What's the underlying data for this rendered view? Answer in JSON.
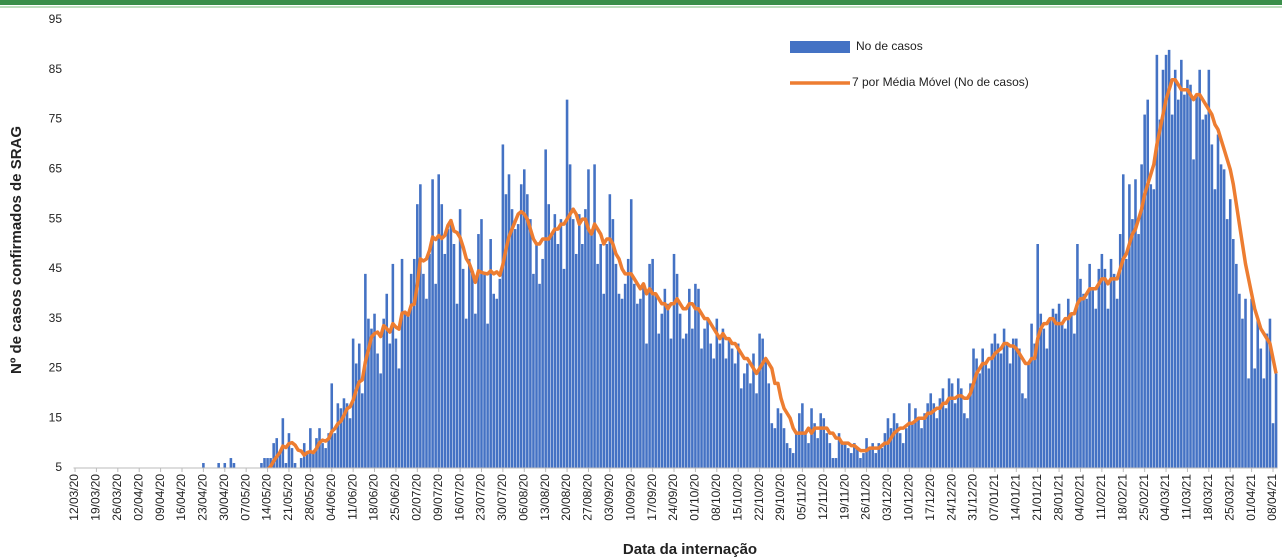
{
  "chart_data": {
    "type": "bar",
    "x_label": "Data da internação",
    "y_label": "Nº de casos confirmados de SRAG",
    "legend": "top-right",
    "grid": false,
    "ylim": [
      5,
      95
    ],
    "yticks": [
      5,
      15,
      25,
      35,
      45,
      55,
      65,
      75,
      85,
      95
    ],
    "categories": [
      "12/03/20",
      null,
      null,
      null,
      null,
      null,
      null,
      "19/03/20",
      null,
      null,
      null,
      null,
      null,
      null,
      "26/03/20",
      null,
      null,
      null,
      null,
      null,
      null,
      "02/04/20",
      null,
      null,
      null,
      null,
      null,
      null,
      "09/04/20",
      null,
      null,
      null,
      null,
      null,
      null,
      "16/04/20",
      null,
      null,
      null,
      null,
      null,
      null,
      "23/04/20",
      null,
      null,
      null,
      null,
      null,
      null,
      "30/04/20",
      null,
      null,
      null,
      null,
      null,
      null,
      "07/05/20",
      null,
      null,
      null,
      null,
      null,
      null,
      "14/05/20",
      null,
      null,
      null,
      null,
      null,
      null,
      "21/05/20",
      null,
      null,
      null,
      null,
      null,
      null,
      "28/05/20",
      null,
      null,
      null,
      null,
      null,
      null,
      "04/06/20",
      null,
      null,
      null,
      null,
      null,
      null,
      "11/06/20",
      null,
      null,
      null,
      null,
      null,
      null,
      "18/06/20",
      null,
      null,
      null,
      null,
      null,
      null,
      "25/06/20",
      null,
      null,
      null,
      null,
      null,
      null,
      "02/07/20",
      null,
      null,
      null,
      null,
      null,
      null,
      "09/07/20",
      null,
      null,
      null,
      null,
      null,
      null,
      "16/07/20",
      null,
      null,
      null,
      null,
      null,
      null,
      "23/07/20",
      null,
      null,
      null,
      null,
      null,
      null,
      "30/07/20",
      null,
      null,
      null,
      null,
      null,
      null,
      "06/08/20",
      null,
      null,
      null,
      null,
      null,
      null,
      "13/08/20",
      null,
      null,
      null,
      null,
      null,
      null,
      "20/08/20",
      null,
      null,
      null,
      null,
      null,
      null,
      "27/08/20",
      null,
      null,
      null,
      null,
      null,
      null,
      "03/09/20",
      null,
      null,
      null,
      null,
      null,
      null,
      "10/09/20",
      null,
      null,
      null,
      null,
      null,
      null,
      "17/09/20",
      null,
      null,
      null,
      null,
      null,
      null,
      "24/09/20",
      null,
      null,
      null,
      null,
      null,
      null,
      "01/10/20",
      null,
      null,
      null,
      null,
      null,
      null,
      "08/10/20",
      null,
      null,
      null,
      null,
      null,
      null,
      "15/10/20",
      null,
      null,
      null,
      null,
      null,
      null,
      "22/10/20",
      null,
      null,
      null,
      null,
      null,
      null,
      "29/10/20",
      null,
      null,
      null,
      null,
      null,
      null,
      "05/11/20",
      null,
      null,
      null,
      null,
      null,
      null,
      "12/11/20",
      null,
      null,
      null,
      null,
      null,
      null,
      "19/11/20",
      null,
      null,
      null,
      null,
      null,
      null,
      "26/11/20",
      null,
      null,
      null,
      null,
      null,
      null,
      "03/12/20",
      null,
      null,
      null,
      null,
      null,
      null,
      "10/12/20",
      null,
      null,
      null,
      null,
      null,
      null,
      "17/12/20",
      null,
      null,
      null,
      null,
      null,
      null,
      "24/12/20",
      null,
      null,
      null,
      null,
      null,
      null,
      "31/12/20",
      null,
      null,
      null,
      null,
      null,
      null,
      "07/01/21",
      null,
      null,
      null,
      null,
      null,
      null,
      "14/01/21",
      null,
      null,
      null,
      null,
      null,
      null,
      "21/01/21",
      null,
      null,
      null,
      null,
      null,
      null,
      "28/01/21",
      null,
      null,
      null,
      null,
      null,
      null,
      "04/02/21",
      null,
      null,
      null,
      null,
      null,
      null,
      "11/02/21",
      null,
      null,
      null,
      null,
      null,
      null,
      "18/02/21",
      null,
      null,
      null,
      null,
      null,
      null,
      "25/02/21",
      null,
      null,
      null,
      null,
      null,
      null,
      "04/03/21",
      null,
      null,
      null,
      null,
      null,
      null,
      "11/03/21",
      null,
      null,
      null,
      null,
      null,
      null,
      "18/03/21",
      null,
      null,
      null,
      null,
      null,
      null,
      "25/03/21",
      null,
      null,
      null,
      null,
      null,
      null,
      "01/04/21",
      null,
      null,
      null,
      null,
      null,
      null,
      "08/04/21",
      null
    ],
    "series": [
      {
        "name": "No de casos",
        "type": "bar",
        "color": "#4472c4",
        "values": [
          0,
          0,
          0,
          0,
          0,
          0,
          0,
          0,
          0,
          0,
          0,
          0,
          0,
          0,
          0,
          0,
          0,
          0,
          0,
          0,
          0,
          0,
          0,
          0,
          0,
          0,
          0,
          0,
          0,
          0,
          0,
          0,
          0,
          0,
          0,
          0,
          1,
          0,
          0,
          1,
          0,
          0,
          6,
          0,
          1,
          0,
          0,
          6,
          2,
          6,
          2,
          7,
          6,
          0,
          3,
          1,
          4,
          3,
          2,
          5,
          3,
          6,
          7,
          7,
          7,
          10,
          11,
          8,
          15,
          6,
          12,
          9,
          6,
          5,
          7,
          10,
          8,
          13,
          8,
          11,
          13,
          10,
          9,
          12,
          22,
          12,
          18,
          17,
          19,
          18,
          15,
          31,
          26,
          30,
          20,
          44,
          35,
          33,
          36,
          28,
          24,
          35,
          40,
          30,
          46,
          31,
          25,
          47,
          36,
          36,
          44,
          47,
          58,
          62,
          44,
          39,
          48,
          63,
          42,
          64,
          58,
          48,
          53,
          55,
          50,
          38,
          57,
          45,
          35,
          47,
          44,
          36,
          52,
          55,
          44,
          34,
          51,
          40,
          39,
          43,
          70,
          60,
          64,
          57,
          53,
          54,
          62,
          65,
          60,
          55,
          44,
          50,
          42,
          47,
          69,
          58,
          52,
          56,
          50,
          55,
          45,
          79,
          66,
          55,
          48,
          56,
          50,
          57,
          65,
          52,
          66,
          46,
          50,
          40,
          50,
          60,
          55,
          46,
          40,
          39,
          42,
          47,
          59,
          42,
          38,
          39,
          42,
          30,
          46,
          47,
          40,
          32,
          36,
          41,
          38,
          31,
          48,
          44,
          36,
          31,
          32,
          41,
          33,
          42,
          41,
          29,
          33,
          35,
          30,
          27,
          35,
          30,
          33,
          27,
          31,
          29,
          26,
          30,
          21,
          24,
          26,
          22,
          28,
          20,
          32,
          31,
          27,
          22,
          14,
          13,
          17,
          16,
          13,
          10,
          9,
          8,
          12,
          16,
          18,
          12,
          10,
          17,
          14,
          11,
          16,
          15,
          12,
          10,
          7,
          7,
          12,
          10,
          10,
          9,
          8,
          10,
          9,
          7,
          8,
          11,
          9,
          10,
          8,
          10,
          9,
          12,
          15,
          13,
          16,
          14,
          12,
          10,
          13,
          18,
          14,
          17,
          15,
          13,
          16,
          18,
          20,
          18,
          15,
          19,
          21,
          17,
          23,
          22,
          18,
          23,
          21,
          16,
          15,
          22,
          29,
          27,
          24,
          29,
          26,
          25,
          30,
          32,
          30,
          28,
          33,
          30,
          26,
          31,
          31,
          29,
          20,
          19,
          26,
          34,
          30,
          50,
          36,
          33,
          29,
          35,
          37,
          36,
          38,
          34,
          33,
          39,
          36,
          32,
          50,
          43,
          40,
          39,
          46,
          41,
          37,
          45,
          48,
          45,
          37,
          47,
          44,
          39,
          52,
          64,
          47,
          62,
          55,
          63,
          52,
          66,
          76,
          79,
          62,
          61,
          88,
          75,
          85,
          88,
          89,
          76,
          85,
          79,
          87,
          80,
          83,
          82,
          67,
          80,
          85,
          75,
          76,
          85,
          70,
          61,
          72,
          66,
          65,
          55,
          59,
          51,
          46,
          40,
          35,
          39,
          23,
          39,
          25,
          35,
          29,
          23,
          32,
          35,
          14,
          24
        ]
      },
      {
        "name": "7 por Média Móvel (No de casos)",
        "type": "line",
        "color": "#ed7d31",
        "values": [
          null,
          null,
          null,
          null,
          null,
          null,
          0,
          0,
          0,
          0,
          0,
          0,
          0,
          0,
          0,
          0,
          0,
          0,
          0,
          0,
          0,
          0,
          0,
          0,
          0,
          0,
          0,
          0,
          0,
          0,
          0,
          0,
          0,
          0,
          0,
          0,
          0,
          0,
          0.1,
          0.3,
          0.4,
          0.4,
          1.3,
          1.3,
          1.4,
          1.4,
          1.4,
          2.1,
          2.1,
          2.1,
          2.4,
          3.3,
          4.1,
          3.6,
          3.6,
          3.6,
          3.4,
          3.6,
          2.9,
          2.9,
          3.3,
          4.3,
          4.3,
          4.7,
          5.3,
          6.4,
          7.3,
          8.1,
          9.4,
          9.1,
          9.9,
          10.1,
          9.6,
          8.6,
          8.4,
          7.6,
          8.1,
          8.3,
          8.1,
          8.9,
          10.1,
          10.6,
          10.4,
          10.9,
          12.3,
          12.9,
          13.9,
          14.4,
          15.6,
          16.9,
          17.3,
          18.6,
          20.6,
          22.3,
          22.7,
          26.3,
          28.7,
          31.3,
          32,
          32.3,
          31.4,
          33.6,
          33,
          32.3,
          34,
          33.3,
          32.9,
          36.1,
          36.3,
          35.7,
          37.7,
          37.9,
          41.7,
          47,
          46.6,
          47,
          48.7,
          51.4,
          50.9,
          51.7,
          51.1,
          51.7,
          53.7,
          54.7,
          52.6,
          52.3,
          51.3,
          49.4,
          47.1,
          46.1,
          44.4,
          42.3,
          44.6,
          44.3,
          44.1,
          44,
          44.6,
          44,
          44.4,
          43.7,
          45.9,
          48.9,
          51.5,
          53,
          54.5,
          56,
          56.5,
          56,
          55,
          53,
          51,
          50,
          50,
          51,
          51,
          51,
          52,
          53,
          53,
          54,
          54,
          55,
          56,
          57,
          56,
          54,
          55,
          55,
          53,
          52,
          54,
          53,
          52,
          50,
          51,
          51,
          50,
          48,
          47,
          45,
          44,
          44,
          44,
          43,
          42,
          41,
          42,
          40,
          41,
          40,
          40,
          39,
          38,
          38,
          37,
          38,
          38,
          39,
          38,
          37,
          37,
          38,
          38,
          37,
          37,
          36,
          35,
          35,
          34,
          33,
          32,
          31,
          32,
          31,
          31,
          30,
          30,
          29,
          28,
          27,
          27,
          26,
          25,
          24,
          25,
          26,
          27,
          26,
          25,
          22,
          22,
          19,
          17,
          16,
          15,
          13,
          12,
          12,
          12,
          12,
          13,
          12,
          13,
          13,
          13,
          13,
          13,
          12,
          12,
          11,
          11,
          10,
          10,
          10,
          9.5,
          9.5,
          9,
          8.5,
          8.5,
          8.5,
          9,
          9,
          9,
          9,
          9.5,
          10,
          10,
          11,
          12,
          12.5,
          13,
          13,
          13.5,
          14,
          14,
          14.5,
          15,
          15,
          15,
          16,
          16,
          16.5,
          17,
          17,
          18,
          18,
          19,
          19,
          19,
          19.5,
          19.5,
          19,
          19,
          20,
          22,
          24,
          25,
          26,
          26,
          27,
          27,
          28,
          28.5,
          29,
          30,
          30,
          29.5,
          29.5,
          29,
          28,
          27,
          26,
          26,
          27,
          27,
          31,
          33,
          34,
          34,
          35,
          35,
          34,
          34,
          34,
          35,
          35,
          36,
          36,
          38,
          39,
          39,
          40,
          41,
          41,
          41,
          42,
          43,
          43,
          42,
          43,
          43,
          43,
          45,
          47,
          48,
          50,
          52,
          53,
          55,
          57,
          60,
          62,
          64,
          66,
          70,
          73,
          76,
          79,
          81,
          83,
          83,
          82,
          81,
          81,
          81,
          80,
          79,
          80,
          80,
          79,
          78,
          77,
          76,
          74,
          73,
          71,
          69,
          67,
          65,
          62,
          58,
          54,
          50,
          46,
          43,
          40,
          37,
          35,
          33,
          32,
          31,
          30,
          27,
          24
        ]
      }
    ]
  }
}
